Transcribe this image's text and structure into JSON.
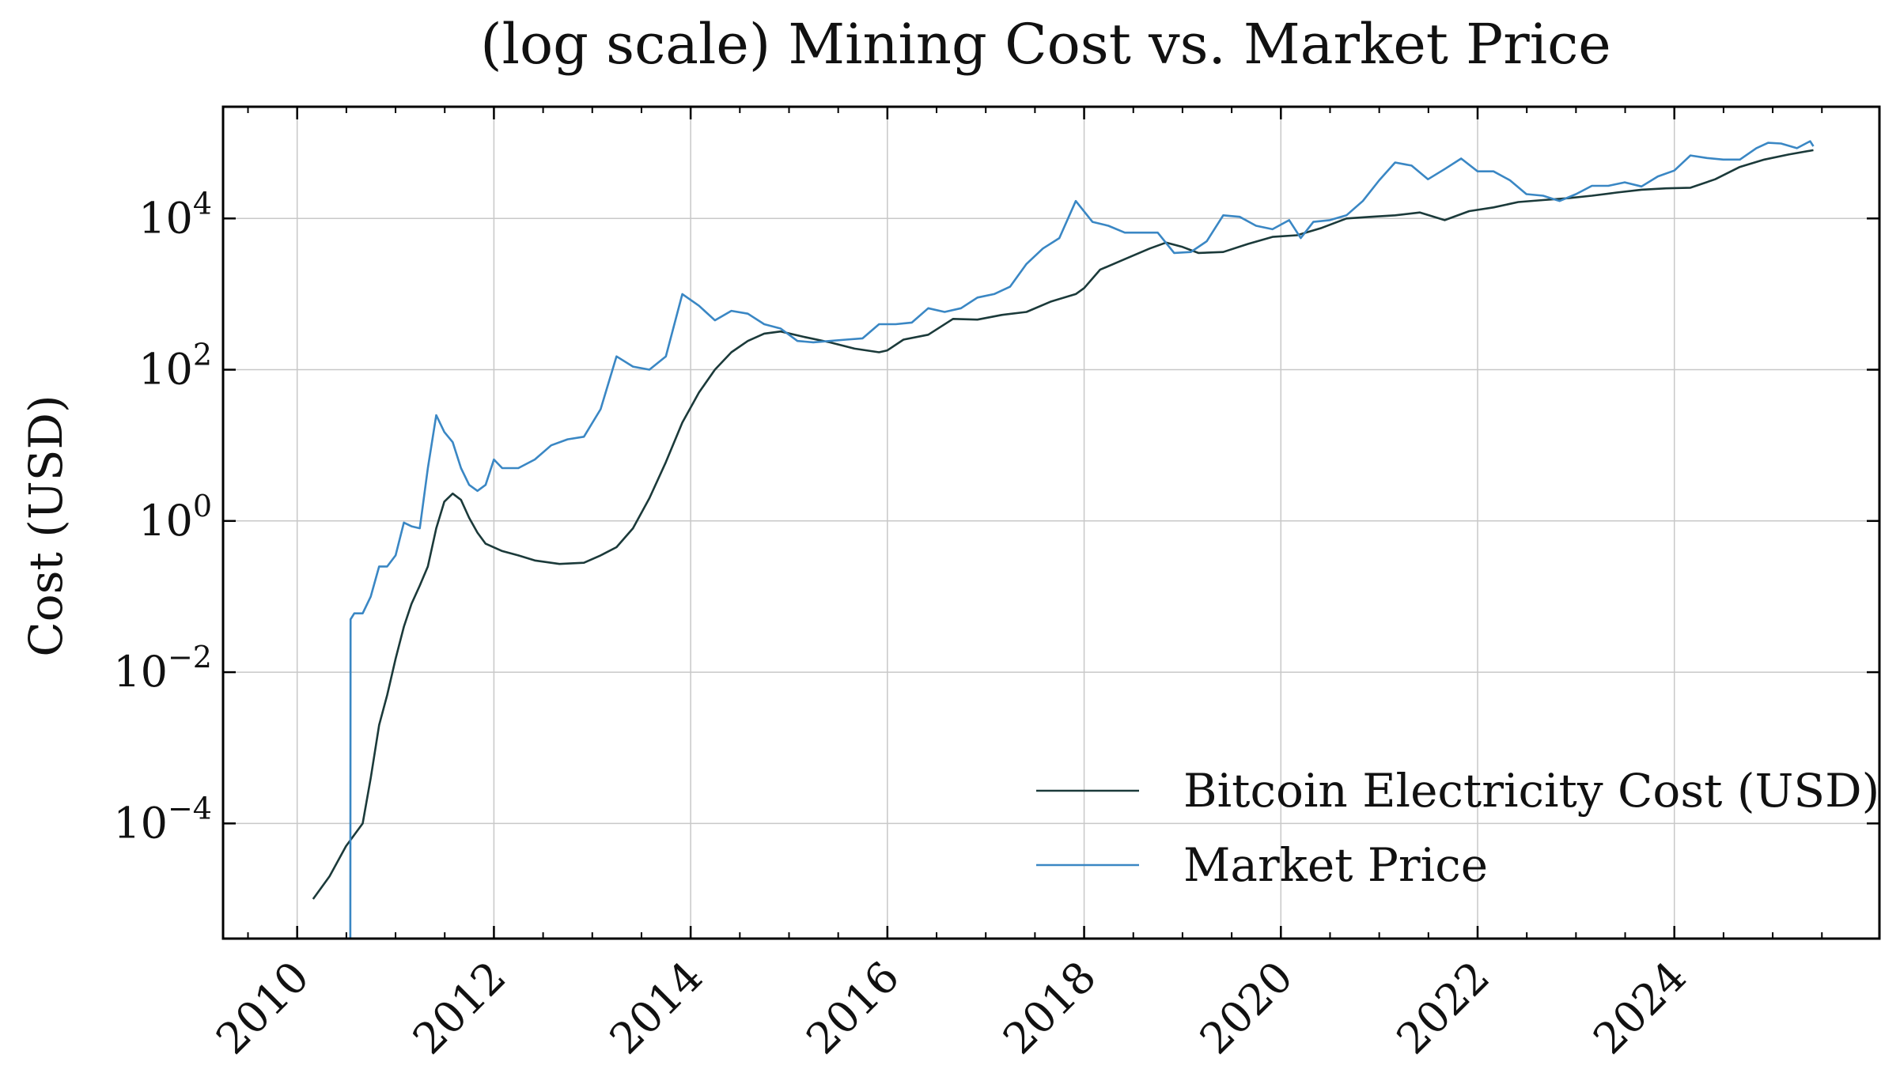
{
  "chart_data": {
    "type": "line",
    "title": "(log scale) Mining Cost vs. Market Price",
    "xlabel": "",
    "ylabel": "Cost (USD)",
    "yscale": "log",
    "x_axis_type": "date",
    "xlim": [
      "2009-04-01",
      "2026-02-01"
    ],
    "ylim": [
      3e-06,
      300000
    ],
    "grid": true,
    "legend_position": "lower right",
    "x_tick_labels": [
      "2010",
      "2012",
      "2014",
      "2016",
      "2018",
      "2020",
      "2022",
      "2024"
    ],
    "y_ticks": [
      {
        "base": "10",
        "exp": "4"
      },
      {
        "base": "10",
        "exp": "2"
      },
      {
        "base": "10",
        "exp": "0"
      },
      {
        "base": "10",
        "exp": "−2"
      },
      {
        "base": "10",
        "exp": "−4"
      }
    ],
    "series": [
      {
        "name": "Bitcoin Electricity Cost (USD)",
        "color": "#1b3a3a",
        "points": [
          [
            "2010-03-01",
            1e-05
          ],
          [
            "2010-05-01",
            2e-05
          ],
          [
            "2010-07-01",
            5e-05
          ],
          [
            "2010-09-01",
            0.0001
          ],
          [
            "2010-10-01",
            0.0004
          ],
          [
            "2010-11-01",
            0.002
          ],
          [
            "2010-12-01",
            0.005
          ],
          [
            "2011-01-01",
            0.015
          ],
          [
            "2011-02-01",
            0.04
          ],
          [
            "2011-03-01",
            0.08
          ],
          [
            "2011-04-01",
            0.14
          ],
          [
            "2011-05-01",
            0.25
          ],
          [
            "2011-06-01",
            0.8
          ],
          [
            "2011-07-01",
            1.8
          ],
          [
            "2011-08-01",
            2.3
          ],
          [
            "2011-09-01",
            1.9
          ],
          [
            "2011-10-01",
            1.1
          ],
          [
            "2011-11-01",
            0.7
          ],
          [
            "2011-12-01",
            0.5
          ],
          [
            "2012-02-01",
            0.4
          ],
          [
            "2012-04-01",
            0.35
          ],
          [
            "2012-06-01",
            0.3
          ],
          [
            "2012-09-01",
            0.27
          ],
          [
            "2012-12-01",
            0.28
          ],
          [
            "2013-02-01",
            0.35
          ],
          [
            "2013-04-01",
            0.45
          ],
          [
            "2013-06-01",
            0.8
          ],
          [
            "2013-08-01",
            2
          ],
          [
            "2013-10-01",
            6
          ],
          [
            "2013-12-01",
            20
          ],
          [
            "2014-02-01",
            50
          ],
          [
            "2014-04-01",
            100
          ],
          [
            "2014-06-01",
            170
          ],
          [
            "2014-08-01",
            240
          ],
          [
            "2014-10-01",
            300
          ],
          [
            "2014-12-01",
            320
          ],
          [
            "2015-03-01",
            270
          ],
          [
            "2015-06-01",
            230
          ],
          [
            "2015-09-01",
            190
          ],
          [
            "2015-12-01",
            170
          ],
          [
            "2016-01-01",
            180
          ],
          [
            "2016-03-01",
            250
          ],
          [
            "2016-06-01",
            290
          ],
          [
            "2016-09-01",
            470
          ],
          [
            "2016-12-01",
            460
          ],
          [
            "2017-03-01",
            530
          ],
          [
            "2017-06-01",
            580
          ],
          [
            "2017-09-01",
            800
          ],
          [
            "2017-12-01",
            1000
          ],
          [
            "2018-01-01",
            1200
          ],
          [
            "2018-03-01",
            2100
          ],
          [
            "2018-06-01",
            2900
          ],
          [
            "2018-09-01",
            4000
          ],
          [
            "2018-11-01",
            4800
          ],
          [
            "2019-01-01",
            4200
          ],
          [
            "2019-03-01",
            3500
          ],
          [
            "2019-06-01",
            3600
          ],
          [
            "2019-09-01",
            4600
          ],
          [
            "2019-12-01",
            5700
          ],
          [
            "2020-03-01",
            6000
          ],
          [
            "2020-06-01",
            7500
          ],
          [
            "2020-09-01",
            10000
          ],
          [
            "2020-12-01",
            10500
          ],
          [
            "2021-03-01",
            11000
          ],
          [
            "2021-06-01",
            12000
          ],
          [
            "2021-09-01",
            9500
          ],
          [
            "2021-12-01",
            12500
          ],
          [
            "2022-03-01",
            14000
          ],
          [
            "2022-06-01",
            16500
          ],
          [
            "2022-09-01",
            17500
          ],
          [
            "2022-12-01",
            18500
          ],
          [
            "2023-03-01",
            20000
          ],
          [
            "2023-06-01",
            22000
          ],
          [
            "2023-09-01",
            24000
          ],
          [
            "2023-12-01",
            25000
          ],
          [
            "2024-03-01",
            25500
          ],
          [
            "2024-06-01",
            33000
          ],
          [
            "2024-09-01",
            48000
          ],
          [
            "2024-12-01",
            60000
          ],
          [
            "2025-03-01",
            70000
          ],
          [
            "2025-06-01",
            80000
          ]
        ]
      },
      {
        "name": "Market Price",
        "color": "#3a87c4",
        "points": [
          [
            "2010-07-17",
            1e-07
          ],
          [
            "2010-07-18",
            0.05
          ],
          [
            "2010-08-01",
            0.06
          ],
          [
            "2010-09-01",
            0.06
          ],
          [
            "2010-10-01",
            0.1
          ],
          [
            "2010-11-01",
            0.25
          ],
          [
            "2010-12-01",
            0.25
          ],
          [
            "2011-01-01",
            0.35
          ],
          [
            "2011-02-01",
            0.95
          ],
          [
            "2011-03-01",
            0.85
          ],
          [
            "2011-04-01",
            0.8
          ],
          [
            "2011-05-01",
            5
          ],
          [
            "2011-06-01",
            25
          ],
          [
            "2011-07-01",
            15
          ],
          [
            "2011-08-01",
            11
          ],
          [
            "2011-09-01",
            5
          ],
          [
            "2011-10-01",
            3
          ],
          [
            "2011-11-01",
            2.5
          ],
          [
            "2011-12-01",
            3
          ],
          [
            "2012-01-01",
            6.5
          ],
          [
            "2012-02-01",
            5
          ],
          [
            "2012-04-01",
            5
          ],
          [
            "2012-06-01",
            6.5
          ],
          [
            "2012-08-01",
            10
          ],
          [
            "2012-10-01",
            12
          ],
          [
            "2012-12-01",
            13
          ],
          [
            "2013-02-01",
            30
          ],
          [
            "2013-04-01",
            150
          ],
          [
            "2013-06-01",
            110
          ],
          [
            "2013-08-01",
            100
          ],
          [
            "2013-10-01",
            150
          ],
          [
            "2013-12-01",
            1000
          ],
          [
            "2014-02-01",
            700
          ],
          [
            "2014-04-01",
            450
          ],
          [
            "2014-06-01",
            600
          ],
          [
            "2014-08-01",
            550
          ],
          [
            "2014-10-01",
            400
          ],
          [
            "2014-12-01",
            350
          ],
          [
            "2015-02-01",
            240
          ],
          [
            "2015-04-01",
            230
          ],
          [
            "2015-06-01",
            240
          ],
          [
            "2015-08-01",
            250
          ],
          [
            "2015-10-01",
            260
          ],
          [
            "2015-12-01",
            400
          ],
          [
            "2016-02-01",
            400
          ],
          [
            "2016-04-01",
            420
          ],
          [
            "2016-06-01",
            650
          ],
          [
            "2016-08-01",
            580
          ],
          [
            "2016-10-01",
            650
          ],
          [
            "2016-12-01",
            900
          ],
          [
            "2017-02-01",
            1000
          ],
          [
            "2017-04-01",
            1250
          ],
          [
            "2017-06-01",
            2500
          ],
          [
            "2017-08-01",
            4000
          ],
          [
            "2017-10-01",
            5500
          ],
          [
            "2017-12-01",
            17000
          ],
          [
            "2018-02-01",
            9000
          ],
          [
            "2018-04-01",
            8000
          ],
          [
            "2018-06-01",
            6500
          ],
          [
            "2018-08-01",
            6500
          ],
          [
            "2018-10-01",
            6500
          ],
          [
            "2018-12-01",
            3500
          ],
          [
            "2019-02-01",
            3600
          ],
          [
            "2019-04-01",
            5000
          ],
          [
            "2019-06-01",
            11000
          ],
          [
            "2019-08-01",
            10500
          ],
          [
            "2019-10-01",
            8000
          ],
          [
            "2019-12-01",
            7200
          ],
          [
            "2020-02-01",
            9500
          ],
          [
            "2020-03-15",
            5500
          ],
          [
            "2020-05-01",
            9000
          ],
          [
            "2020-07-01",
            9500
          ],
          [
            "2020-09-01",
            11000
          ],
          [
            "2020-11-01",
            17000
          ],
          [
            "2021-01-01",
            32000
          ],
          [
            "2021-03-01",
            55000
          ],
          [
            "2021-05-01",
            50000
          ],
          [
            "2021-07-01",
            33000
          ],
          [
            "2021-09-01",
            45000
          ],
          [
            "2021-11-01",
            62000
          ],
          [
            "2022-01-01",
            42000
          ],
          [
            "2022-03-01",
            42000
          ],
          [
            "2022-05-01",
            32000
          ],
          [
            "2022-07-01",
            21000
          ],
          [
            "2022-09-01",
            20000
          ],
          [
            "2022-11-01",
            17000
          ],
          [
            "2023-01-01",
            21000
          ],
          [
            "2023-03-01",
            27000
          ],
          [
            "2023-05-01",
            27000
          ],
          [
            "2023-07-01",
            30000
          ],
          [
            "2023-09-01",
            26500
          ],
          [
            "2023-11-01",
            36000
          ],
          [
            "2024-01-01",
            43000
          ],
          [
            "2024-03-01",
            68000
          ],
          [
            "2024-05-01",
            63000
          ],
          [
            "2024-07-01",
            60000
          ],
          [
            "2024-09-01",
            60000
          ],
          [
            "2024-11-01",
            85000
          ],
          [
            "2024-12-15",
            100000
          ],
          [
            "2025-02-01",
            98000
          ],
          [
            "2025-04-01",
            85000
          ],
          [
            "2025-05-20",
            105000
          ],
          [
            "2025-06-01",
            90000
          ]
        ]
      }
    ]
  }
}
